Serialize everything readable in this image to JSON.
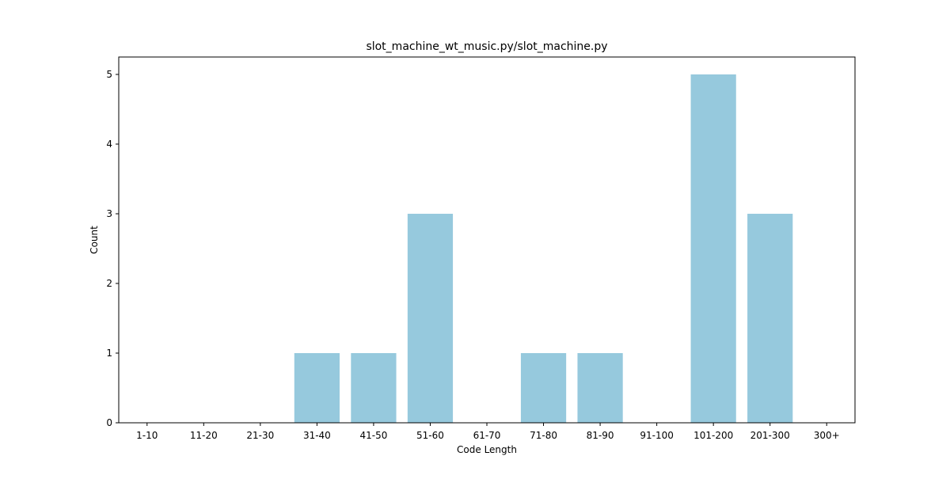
{
  "chart_data": {
    "type": "bar",
    "title": "slot_machine_wt_music.py/slot_machine.py",
    "xlabel": "Code Length",
    "ylabel": "Count",
    "categories": [
      "1-10",
      "11-20",
      "21-30",
      "31-40",
      "41-50",
      "51-60",
      "61-70",
      "71-80",
      "81-90",
      "91-100",
      "101-200",
      "201-300",
      "300+"
    ],
    "values": [
      0,
      0,
      0,
      1,
      1,
      3,
      0,
      1,
      1,
      0,
      5,
      3,
      0
    ],
    "ylim": [
      0,
      5.25
    ],
    "yticks": [
      0,
      1,
      2,
      3,
      4,
      5
    ],
    "bar_color": "#96c9dd",
    "grid": false,
    "legend": "none"
  }
}
